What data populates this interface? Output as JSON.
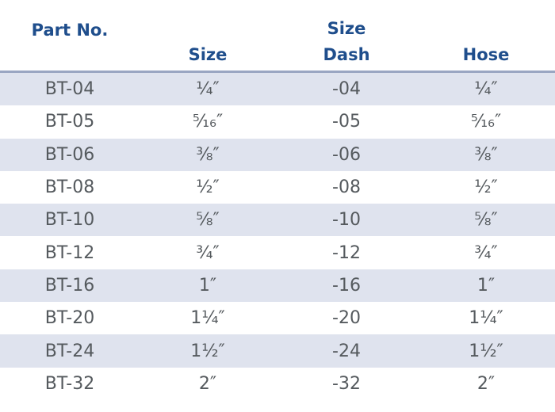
{
  "headers": {
    "part_no": "Part No.",
    "size": "Size",
    "size_dash_top": "Size",
    "size_dash_bottom": "Dash",
    "hose": "Hose"
  },
  "rows": [
    {
      "part": "BT-04",
      "size": "¼″",
      "dash": "-04",
      "hose": "¼″"
    },
    {
      "part": "BT-05",
      "size": "⁵⁄₁₆″",
      "dash": "-05",
      "hose": "⁵⁄₁₆″"
    },
    {
      "part": "BT-06",
      "size": "⅜″",
      "dash": "-06",
      "hose": "⅜″"
    },
    {
      "part": "BT-08",
      "size": "½″",
      "dash": "-08",
      "hose": "½″"
    },
    {
      "part": "BT-10",
      "size": "⅝″",
      "dash": "-10",
      "hose": "⅝″"
    },
    {
      "part": "BT-12",
      "size": "¾″",
      "dash": "-12",
      "hose": "¾″"
    },
    {
      "part": "BT-16",
      "size": "1″",
      "dash": "-16",
      "hose": "1″"
    },
    {
      "part": "BT-20",
      "size": "1¼″",
      "dash": "-20",
      "hose": "1¼″"
    },
    {
      "part": "BT-24",
      "size": "1½″",
      "dash": "-24",
      "hose": "1½″"
    },
    {
      "part": "BT-32",
      "size": "2″",
      "dash": "-32",
      "hose": "2″"
    }
  ],
  "colors": {
    "header_text": "#1f4e8c",
    "body_text": "#555a5e",
    "shaded_row": "#dfe3ee",
    "header_rule": "#9aa6c2"
  }
}
